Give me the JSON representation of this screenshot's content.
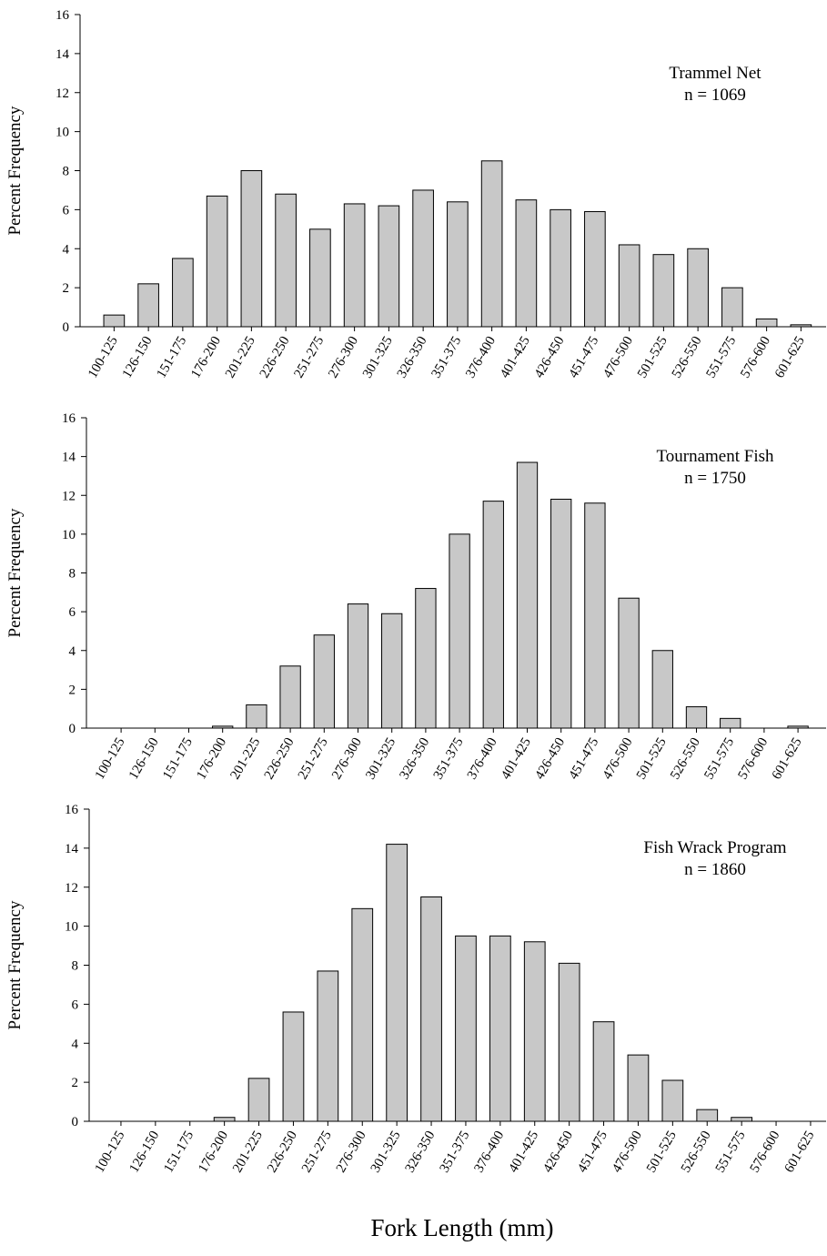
{
  "chart_data": [
    {
      "type": "bar",
      "annotation": [
        "Trammel Net",
        "n = 1069"
      ],
      "ylabel": "Percent Frequency",
      "categories": [
        "100-125",
        "126-150",
        "151-175",
        "176-200",
        "201-225",
        "226-250",
        "251-275",
        "276-300",
        "301-325",
        "326-350",
        "351-375",
        "376-400",
        "401-425",
        "426-450",
        "451-475",
        "476-500",
        "501-525",
        "526-550",
        "551-575",
        "576-600",
        "601-625"
      ],
      "values": [
        0.6,
        2.2,
        3.5,
        6.7,
        8.0,
        6.8,
        5.0,
        6.3,
        6.2,
        7.0,
        6.4,
        8.5,
        6.5,
        6.0,
        5.9,
        4.2,
        3.7,
        4.0,
        2.0,
        0.4,
        0.1
      ],
      "color": "#c8c8c8",
      "ylim": [
        0,
        16
      ],
      "yticks": [
        0,
        2,
        4,
        6,
        8,
        10,
        12,
        14,
        16
      ]
    },
    {
      "type": "bar",
      "annotation": [
        "Tournament Fish",
        "n = 1750"
      ],
      "ylabel": "Percent Frequency",
      "categories": [
        "100-125",
        "126-150",
        "151-175",
        "176-200",
        "201-225",
        "226-250",
        "251-275",
        "276-300",
        "301-325",
        "326-350",
        "351-375",
        "376-400",
        "401-425",
        "426-450",
        "451-475",
        "476-500",
        "501-525",
        "526-550",
        "551-575",
        "576-600",
        "601-625"
      ],
      "values": [
        0,
        0,
        0,
        0.1,
        1.2,
        3.2,
        4.8,
        6.4,
        5.9,
        7.2,
        10.0,
        11.7,
        13.7,
        11.8,
        11.6,
        6.7,
        4.0,
        1.1,
        0.5,
        0,
        0.1
      ],
      "color": "#c8c8c8",
      "ylim": [
        0,
        16
      ],
      "yticks": [
        0,
        2,
        4,
        6,
        8,
        10,
        12,
        14,
        16
      ]
    },
    {
      "type": "bar",
      "annotation": [
        "Fish Wrack Program",
        "n = 1860"
      ],
      "ylabel": "Percent Frequency",
      "xlabel": "Fork Length (mm)",
      "categories": [
        "100-125",
        "126-150",
        "151-175",
        "176-200",
        "201-225",
        "226-250",
        "251-275",
        "276-300",
        "301-325",
        "326-350",
        "351-375",
        "376-400",
        "401-425",
        "426-450",
        "451-475",
        "476-500",
        "501-525",
        "526-550",
        "551-575",
        "576-600",
        "601-625"
      ],
      "values": [
        0,
        0,
        0,
        0.2,
        2.2,
        5.6,
        7.7,
        10.9,
        14.2,
        11.5,
        9.5,
        9.5,
        9.2,
        8.1,
        5.1,
        3.4,
        2.1,
        0.6,
        0.2,
        0,
        0
      ],
      "color": "#c8c8c8",
      "ylim": [
        0,
        16
      ],
      "yticks": [
        0,
        2,
        4,
        6,
        8,
        10,
        12,
        14,
        16
      ]
    }
  ]
}
